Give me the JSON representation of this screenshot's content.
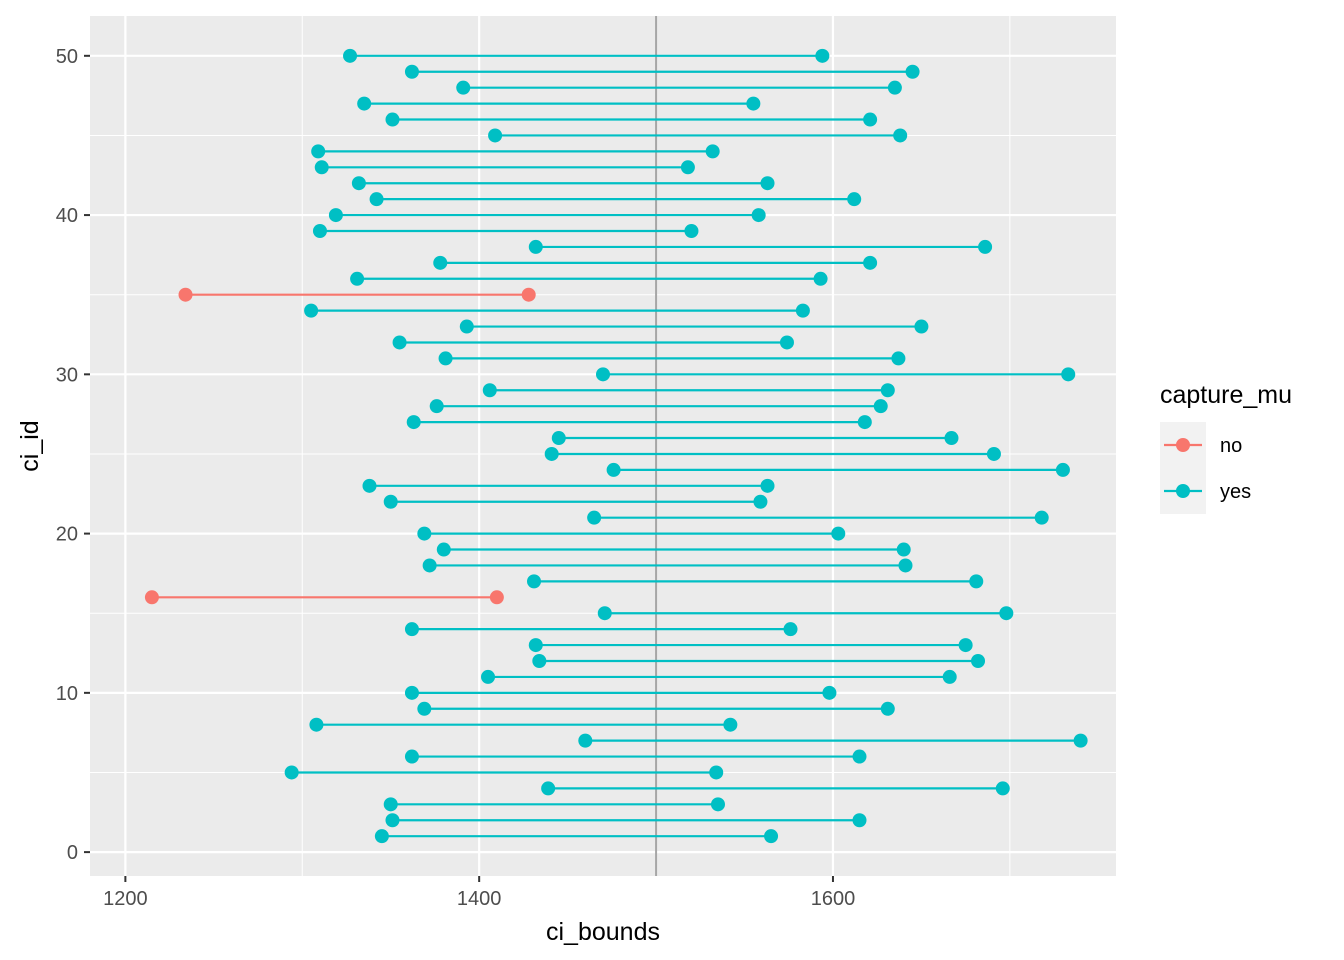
{
  "chart_data": {
    "type": "dumbbell",
    "title": "",
    "xlabel": "ci_bounds",
    "ylabel": "ci_id",
    "xlim": [
      1180,
      1760
    ],
    "ylim": [
      -1.5,
      52.5
    ],
    "xticks": [
      1200,
      1400,
      1600
    ],
    "yticks": [
      0,
      10,
      20,
      30,
      40,
      50
    ],
    "reference_line": 1500,
    "grid": true,
    "legend": {
      "title": "capture_mu",
      "position": "right",
      "entries": [
        {
          "name": "no",
          "color": "#F8766D"
        },
        {
          "name": "yes",
          "color": "#00BFC4"
        }
      ]
    },
    "intervals": [
      {
        "ci_id": 1,
        "lower": 1345,
        "upper": 1565,
        "capture_mu": "yes"
      },
      {
        "ci_id": 2,
        "lower": 1351,
        "upper": 1615,
        "capture_mu": "yes"
      },
      {
        "ci_id": 3,
        "lower": 1350,
        "upper": 1535,
        "capture_mu": "yes"
      },
      {
        "ci_id": 4,
        "lower": 1439,
        "upper": 1696,
        "capture_mu": "yes"
      },
      {
        "ci_id": 5,
        "lower": 1294,
        "upper": 1534,
        "capture_mu": "yes"
      },
      {
        "ci_id": 6,
        "lower": 1362,
        "upper": 1615,
        "capture_mu": "yes"
      },
      {
        "ci_id": 7,
        "lower": 1460,
        "upper": 1740,
        "capture_mu": "yes"
      },
      {
        "ci_id": 8,
        "lower": 1308,
        "upper": 1542,
        "capture_mu": "yes"
      },
      {
        "ci_id": 9,
        "lower": 1369,
        "upper": 1631,
        "capture_mu": "yes"
      },
      {
        "ci_id": 10,
        "lower": 1362,
        "upper": 1598,
        "capture_mu": "yes"
      },
      {
        "ci_id": 11,
        "lower": 1405,
        "upper": 1666,
        "capture_mu": "yes"
      },
      {
        "ci_id": 12,
        "lower": 1434,
        "upper": 1682,
        "capture_mu": "yes"
      },
      {
        "ci_id": 13,
        "lower": 1432,
        "upper": 1675,
        "capture_mu": "yes"
      },
      {
        "ci_id": 14,
        "lower": 1362,
        "upper": 1576,
        "capture_mu": "yes"
      },
      {
        "ci_id": 15,
        "lower": 1471,
        "upper": 1698,
        "capture_mu": "yes"
      },
      {
        "ci_id": 16,
        "lower": 1215,
        "upper": 1410,
        "capture_mu": "no"
      },
      {
        "ci_id": 17,
        "lower": 1431,
        "upper": 1681,
        "capture_mu": "yes"
      },
      {
        "ci_id": 18,
        "lower": 1372,
        "upper": 1641,
        "capture_mu": "yes"
      },
      {
        "ci_id": 19,
        "lower": 1380,
        "upper": 1640,
        "capture_mu": "yes"
      },
      {
        "ci_id": 20,
        "lower": 1369,
        "upper": 1603,
        "capture_mu": "yes"
      },
      {
        "ci_id": 21,
        "lower": 1465,
        "upper": 1718,
        "capture_mu": "yes"
      },
      {
        "ci_id": 22,
        "lower": 1350,
        "upper": 1559,
        "capture_mu": "yes"
      },
      {
        "ci_id": 23,
        "lower": 1338,
        "upper": 1563,
        "capture_mu": "yes"
      },
      {
        "ci_id": 24,
        "lower": 1476,
        "upper": 1730,
        "capture_mu": "yes"
      },
      {
        "ci_id": 25,
        "lower": 1441,
        "upper": 1691,
        "capture_mu": "yes"
      },
      {
        "ci_id": 26,
        "lower": 1445,
        "upper": 1667,
        "capture_mu": "yes"
      },
      {
        "ci_id": 27,
        "lower": 1363,
        "upper": 1618,
        "capture_mu": "yes"
      },
      {
        "ci_id": 28,
        "lower": 1376,
        "upper": 1627,
        "capture_mu": "yes"
      },
      {
        "ci_id": 29,
        "lower": 1406,
        "upper": 1631,
        "capture_mu": "yes"
      },
      {
        "ci_id": 30,
        "lower": 1470,
        "upper": 1733,
        "capture_mu": "yes"
      },
      {
        "ci_id": 31,
        "lower": 1381,
        "upper": 1637,
        "capture_mu": "yes"
      },
      {
        "ci_id": 32,
        "lower": 1355,
        "upper": 1574,
        "capture_mu": "yes"
      },
      {
        "ci_id": 33,
        "lower": 1393,
        "upper": 1650,
        "capture_mu": "yes"
      },
      {
        "ci_id": 34,
        "lower": 1305,
        "upper": 1583,
        "capture_mu": "yes"
      },
      {
        "ci_id": 35,
        "lower": 1234,
        "upper": 1428,
        "capture_mu": "no"
      },
      {
        "ci_id": 36,
        "lower": 1331,
        "upper": 1593,
        "capture_mu": "yes"
      },
      {
        "ci_id": 37,
        "lower": 1378,
        "upper": 1621,
        "capture_mu": "yes"
      },
      {
        "ci_id": 38,
        "lower": 1432,
        "upper": 1686,
        "capture_mu": "yes"
      },
      {
        "ci_id": 39,
        "lower": 1310,
        "upper": 1520,
        "capture_mu": "yes"
      },
      {
        "ci_id": 40,
        "lower": 1319,
        "upper": 1558,
        "capture_mu": "yes"
      },
      {
        "ci_id": 41,
        "lower": 1342,
        "upper": 1612,
        "capture_mu": "yes"
      },
      {
        "ci_id": 42,
        "lower": 1332,
        "upper": 1563,
        "capture_mu": "yes"
      },
      {
        "ci_id": 43,
        "lower": 1311,
        "upper": 1518,
        "capture_mu": "yes"
      },
      {
        "ci_id": 44,
        "lower": 1309,
        "upper": 1532,
        "capture_mu": "yes"
      },
      {
        "ci_id": 45,
        "lower": 1409,
        "upper": 1638,
        "capture_mu": "yes"
      },
      {
        "ci_id": 46,
        "lower": 1351,
        "upper": 1621,
        "capture_mu": "yes"
      },
      {
        "ci_id": 47,
        "lower": 1335,
        "upper": 1555,
        "capture_mu": "yes"
      },
      {
        "ci_id": 48,
        "lower": 1391,
        "upper": 1635,
        "capture_mu": "yes"
      },
      {
        "ci_id": 49,
        "lower": 1362,
        "upper": 1645,
        "capture_mu": "yes"
      },
      {
        "ci_id": 50,
        "lower": 1327,
        "upper": 1594,
        "capture_mu": "yes"
      }
    ]
  }
}
